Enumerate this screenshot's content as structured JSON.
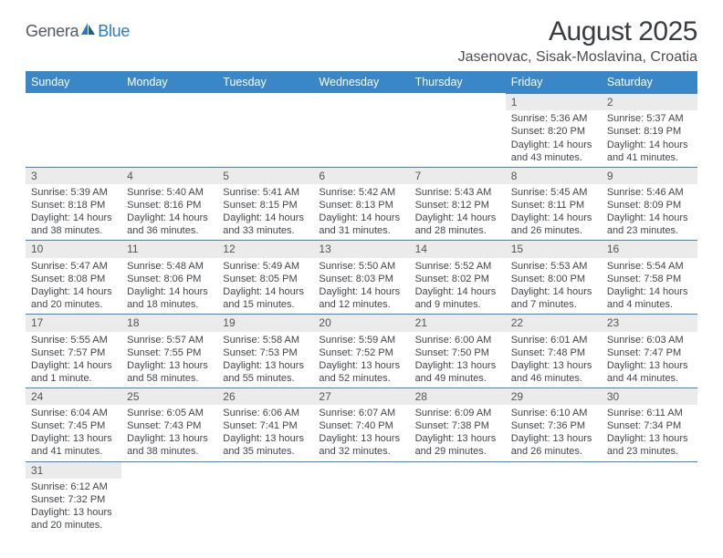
{
  "logo": {
    "text1": "Genera",
    "text2": "Blue"
  },
  "title": "August 2025",
  "location": "Jasenovac, Sisak-Moslavina, Croatia",
  "colors": {
    "header_bg": "#3a87c8",
    "header_fg": "#ffffff",
    "daynum_bg": "#ebebeb",
    "row_divider": "#3a87c8",
    "text": "#424549",
    "title_color": "#393c40"
  },
  "weekdays": [
    "Sunday",
    "Monday",
    "Tuesday",
    "Wednesday",
    "Thursday",
    "Friday",
    "Saturday"
  ],
  "weeks": [
    [
      null,
      null,
      null,
      null,
      null,
      {
        "n": "1",
        "sr": "5:36 AM",
        "ss": "8:20 PM",
        "dl": "14 hours and 43 minutes."
      },
      {
        "n": "2",
        "sr": "5:37 AM",
        "ss": "8:19 PM",
        "dl": "14 hours and 41 minutes."
      }
    ],
    [
      {
        "n": "3",
        "sr": "5:39 AM",
        "ss": "8:18 PM",
        "dl": "14 hours and 38 minutes."
      },
      {
        "n": "4",
        "sr": "5:40 AM",
        "ss": "8:16 PM",
        "dl": "14 hours and 36 minutes."
      },
      {
        "n": "5",
        "sr": "5:41 AM",
        "ss": "8:15 PM",
        "dl": "14 hours and 33 minutes."
      },
      {
        "n": "6",
        "sr": "5:42 AM",
        "ss": "8:13 PM",
        "dl": "14 hours and 31 minutes."
      },
      {
        "n": "7",
        "sr": "5:43 AM",
        "ss": "8:12 PM",
        "dl": "14 hours and 28 minutes."
      },
      {
        "n": "8",
        "sr": "5:45 AM",
        "ss": "8:11 PM",
        "dl": "14 hours and 26 minutes."
      },
      {
        "n": "9",
        "sr": "5:46 AM",
        "ss": "8:09 PM",
        "dl": "14 hours and 23 minutes."
      }
    ],
    [
      {
        "n": "10",
        "sr": "5:47 AM",
        "ss": "8:08 PM",
        "dl": "14 hours and 20 minutes."
      },
      {
        "n": "11",
        "sr": "5:48 AM",
        "ss": "8:06 PM",
        "dl": "14 hours and 18 minutes."
      },
      {
        "n": "12",
        "sr": "5:49 AM",
        "ss": "8:05 PM",
        "dl": "14 hours and 15 minutes."
      },
      {
        "n": "13",
        "sr": "5:50 AM",
        "ss": "8:03 PM",
        "dl": "14 hours and 12 minutes."
      },
      {
        "n": "14",
        "sr": "5:52 AM",
        "ss": "8:02 PM",
        "dl": "14 hours and 9 minutes."
      },
      {
        "n": "15",
        "sr": "5:53 AM",
        "ss": "8:00 PM",
        "dl": "14 hours and 7 minutes."
      },
      {
        "n": "16",
        "sr": "5:54 AM",
        "ss": "7:58 PM",
        "dl": "14 hours and 4 minutes."
      }
    ],
    [
      {
        "n": "17",
        "sr": "5:55 AM",
        "ss": "7:57 PM",
        "dl": "14 hours and 1 minute."
      },
      {
        "n": "18",
        "sr": "5:57 AM",
        "ss": "7:55 PM",
        "dl": "13 hours and 58 minutes."
      },
      {
        "n": "19",
        "sr": "5:58 AM",
        "ss": "7:53 PM",
        "dl": "13 hours and 55 minutes."
      },
      {
        "n": "20",
        "sr": "5:59 AM",
        "ss": "7:52 PM",
        "dl": "13 hours and 52 minutes."
      },
      {
        "n": "21",
        "sr": "6:00 AM",
        "ss": "7:50 PM",
        "dl": "13 hours and 49 minutes."
      },
      {
        "n": "22",
        "sr": "6:01 AM",
        "ss": "7:48 PM",
        "dl": "13 hours and 46 minutes."
      },
      {
        "n": "23",
        "sr": "6:03 AM",
        "ss": "7:47 PM",
        "dl": "13 hours and 44 minutes."
      }
    ],
    [
      {
        "n": "24",
        "sr": "6:04 AM",
        "ss": "7:45 PM",
        "dl": "13 hours and 41 minutes."
      },
      {
        "n": "25",
        "sr": "6:05 AM",
        "ss": "7:43 PM",
        "dl": "13 hours and 38 minutes."
      },
      {
        "n": "26",
        "sr": "6:06 AM",
        "ss": "7:41 PM",
        "dl": "13 hours and 35 minutes."
      },
      {
        "n": "27",
        "sr": "6:07 AM",
        "ss": "7:40 PM",
        "dl": "13 hours and 32 minutes."
      },
      {
        "n": "28",
        "sr": "6:09 AM",
        "ss": "7:38 PM",
        "dl": "13 hours and 29 minutes."
      },
      {
        "n": "29",
        "sr": "6:10 AM",
        "ss": "7:36 PM",
        "dl": "13 hours and 26 minutes."
      },
      {
        "n": "30",
        "sr": "6:11 AM",
        "ss": "7:34 PM",
        "dl": "13 hours and 23 minutes."
      }
    ],
    [
      {
        "n": "31",
        "sr": "6:12 AM",
        "ss": "7:32 PM",
        "dl": "13 hours and 20 minutes."
      },
      null,
      null,
      null,
      null,
      null,
      null
    ]
  ],
  "labels": {
    "sunrise": "Sunrise:",
    "sunset": "Sunset:",
    "daylight": "Daylight:"
  }
}
